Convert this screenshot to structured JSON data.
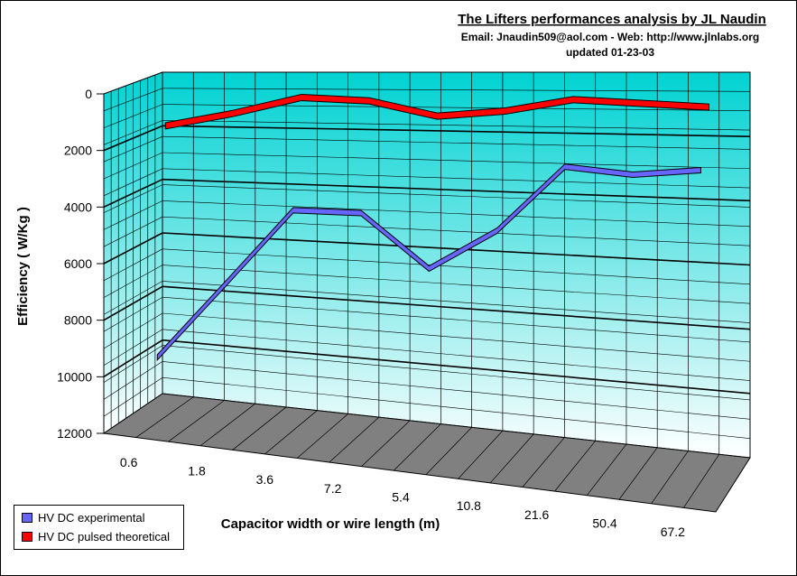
{
  "chart_data": {
    "type": "line",
    "title": "The Lifters performances analysis by JL Naudin",
    "subtitle_lines": [
      "Email: Jnaudin509@aol.com  - Web: http://www.jlnlabs.org",
      "updated 01-23-03"
    ],
    "xlabel": "Capacitor width or wire length (m)",
    "ylabel": "Efficiency ( W/Kg )",
    "categories": [
      "0.6",
      "1.8",
      "3.6",
      "7.2",
      "5.4",
      "10.8",
      "21.6",
      "50.4",
      "67.2"
    ],
    "yticks": [
      "0",
      "2000",
      "4000",
      "6000",
      "8000",
      "10000",
      "12000"
    ],
    "ylim": [
      0,
      12000
    ],
    "y_inverted": true,
    "grid": true,
    "style": "3d",
    "legend_position": "bottom-left",
    "series": [
      {
        "name": "HV DC experimental",
        "color": "#6666ff",
        "values": [
          10300,
          7400,
          4600,
          4600,
          6400,
          5000,
          2800,
          3000,
          2800
        ]
      },
      {
        "name": "HV DC pulsed theoretical",
        "color": "#ff0000",
        "values": [
          2000,
          1500,
          900,
          1000,
          1500,
          1300,
          900,
          1000,
          1100
        ]
      }
    ],
    "colors": {
      "wall_top": "#00cccc",
      "wall_bottom": "#ffffff",
      "floor": "#808080"
    }
  }
}
